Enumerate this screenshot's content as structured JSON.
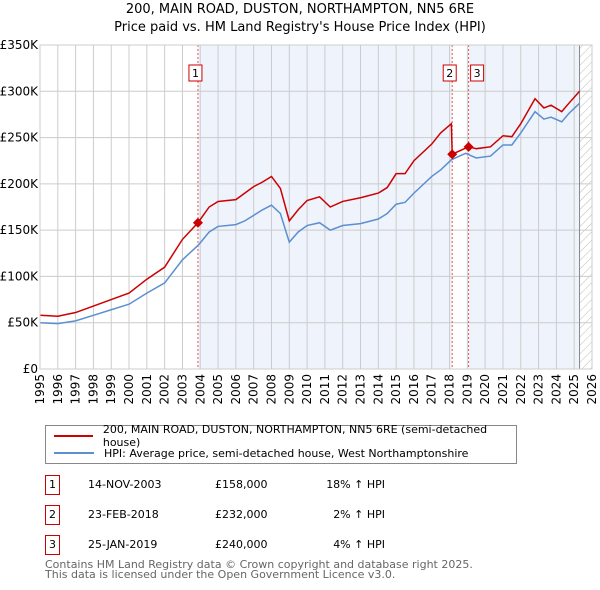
{
  "title": "200, MAIN ROAD, DUSTON, NORTHAMPTON, NN5 6RE",
  "subtitle": "Price paid vs. HM Land Registry's House Price Index (HPI)",
  "chart_data": {
    "type": "line",
    "title": "200, MAIN ROAD, DUSTON, NORTHAMPTON, NN5 6RE",
    "subtitle": "Price paid vs. HM Land Registry's House Price Index (HPI)",
    "xlim": [
      1995,
      2026
    ],
    "ylim": [
      0,
      350000
    ],
    "x_ticks": [
      "1995",
      "1996",
      "1997",
      "1998",
      "1999",
      "2000",
      "2001",
      "2002",
      "2003",
      "2004",
      "2005",
      "2006",
      "2007",
      "2008",
      "2009",
      "2010",
      "2011",
      "2012",
      "2013",
      "2014",
      "2015",
      "2016",
      "2017",
      "2018",
      "2019",
      "2020",
      "2021",
      "2022",
      "2023",
      "2024",
      "2025",
      "2026"
    ],
    "y_ticks": [
      {
        "v": 0,
        "l": "£0"
      },
      {
        "v": 50000,
        "l": "£50K"
      },
      {
        "v": 100000,
        "l": "£100K"
      },
      {
        "v": 150000,
        "l": "£150K"
      },
      {
        "v": 200000,
        "l": "£200K"
      },
      {
        "v": 250000,
        "l": "£250K"
      },
      {
        "v": 300000,
        "l": "£300K"
      },
      {
        "v": 350000,
        "l": "£350K"
      }
    ],
    "grid": true,
    "series": [
      {
        "name": "200, MAIN ROAD, DUSTON, NORTHAMPTON, NN5 6RE (semi-detached house)",
        "color": "#cc0000",
        "points": [
          [
            1995,
            58
          ],
          [
            1996,
            57
          ],
          [
            1997,
            61
          ],
          [
            1998,
            68
          ],
          [
            1999,
            75
          ],
          [
            2000,
            82
          ],
          [
            2001,
            97
          ],
          [
            2002,
            110
          ],
          [
            2003,
            140
          ],
          [
            2003.87,
            158
          ],
          [
            2004.5,
            175
          ],
          [
            2005,
            181
          ],
          [
            2006,
            183
          ],
          [
            2006.5,
            190
          ],
          [
            2007,
            197
          ],
          [
            2007.5,
            202
          ],
          [
            2008,
            208
          ],
          [
            2008.5,
            195
          ],
          [
            2009,
            160
          ],
          [
            2009.5,
            172
          ],
          [
            2010,
            182
          ],
          [
            2010.7,
            186
          ],
          [
            2011.3,
            175
          ],
          [
            2012,
            181
          ],
          [
            2013,
            185
          ],
          [
            2014,
            190
          ],
          [
            2014.5,
            196
          ],
          [
            2015,
            211
          ],
          [
            2015.5,
            211
          ],
          [
            2016,
            225
          ],
          [
            2017,
            243
          ],
          [
            2017.5,
            255
          ],
          [
            2018.1,
            265
          ],
          [
            2018.15,
            232
          ],
          [
            2019.07,
            240
          ],
          [
            2019.5,
            238
          ],
          [
            2020.3,
            240
          ],
          [
            2021,
            252
          ],
          [
            2021.5,
            251
          ],
          [
            2022,
            265
          ],
          [
            2022.8,
            292
          ],
          [
            2023.3,
            282
          ],
          [
            2023.7,
            285
          ],
          [
            2024.3,
            278
          ],
          [
            2024.7,
            287
          ],
          [
            2025.3,
            300
          ]
        ]
      },
      {
        "name": "HPI: Average price, semi-detached house, West Northamptonshire",
        "color": "#5b8fd0",
        "points": [
          [
            1995,
            50
          ],
          [
            1996,
            49
          ],
          [
            1997,
            52
          ],
          [
            1998,
            58
          ],
          [
            1999,
            64
          ],
          [
            2000,
            70
          ],
          [
            2001,
            82
          ],
          [
            2002,
            93
          ],
          [
            2003,
            118
          ],
          [
            2003.9,
            134
          ],
          [
            2004.5,
            148
          ],
          [
            2005,
            154
          ],
          [
            2006,
            156
          ],
          [
            2006.5,
            160
          ],
          [
            2007,
            166
          ],
          [
            2007.5,
            172
          ],
          [
            2008,
            177
          ],
          [
            2008.5,
            168
          ],
          [
            2009,
            137
          ],
          [
            2009.5,
            148
          ],
          [
            2010,
            155
          ],
          [
            2010.7,
            158
          ],
          [
            2011.3,
            150
          ],
          [
            2012,
            155
          ],
          [
            2013,
            157
          ],
          [
            2014,
            162
          ],
          [
            2014.5,
            168
          ],
          [
            2015,
            178
          ],
          [
            2015.5,
            180
          ],
          [
            2016,
            190
          ],
          [
            2017,
            208
          ],
          [
            2017.5,
            215
          ],
          [
            2018.1,
            226
          ],
          [
            2018.9,
            233
          ],
          [
            2019.5,
            228
          ],
          [
            2020.3,
            230
          ],
          [
            2021,
            242
          ],
          [
            2021.5,
            242
          ],
          [
            2022,
            255
          ],
          [
            2022.8,
            278
          ],
          [
            2023.3,
            270
          ],
          [
            2023.7,
            272
          ],
          [
            2024.3,
            267
          ],
          [
            2024.7,
            276
          ],
          [
            2025.3,
            287
          ]
        ]
      }
    ],
    "sales": [
      {
        "label": "1",
        "x": 2003.87,
        "y": 158
      },
      {
        "label": "2",
        "x": 2018.15,
        "y": 232
      },
      {
        "label": "3",
        "x": 2019.07,
        "y": 240
      }
    ],
    "shaded": [
      [
        2003.87,
        2018.15
      ],
      [
        2019.07,
        2025.3
      ]
    ],
    "forecast_from": 2025.3
  },
  "legend": {
    "red": "200, MAIN ROAD, DUSTON, NORTHAMPTON, NN5 6RE (semi-detached house)",
    "blue": "HPI: Average price, semi-detached house, West Northamptonshire"
  },
  "transactions": [
    {
      "n": "1",
      "date": "14-NOV-2003",
      "price": "£158,000",
      "hpi": "18% ↑ HPI"
    },
    {
      "n": "2",
      "date": "23-FEB-2018",
      "price": "£232,000",
      "hpi": "2% ↑ HPI"
    },
    {
      "n": "3",
      "date": "25-JAN-2019",
      "price": "£240,000",
      "hpi": "4% ↑ HPI"
    }
  ],
  "footer": [
    "Contains HM Land Registry data © Crown copyright and database right 2025.",
    "This data is licensed under the Open Government Licence v3.0."
  ]
}
